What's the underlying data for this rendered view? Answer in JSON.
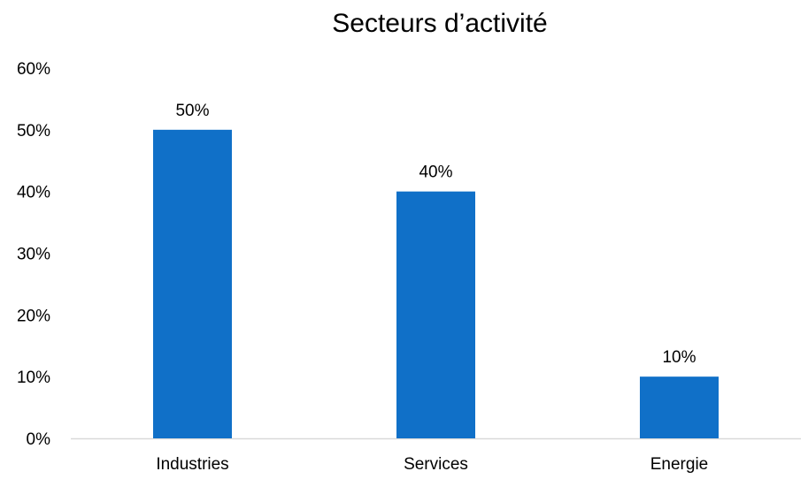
{
  "chart_data": {
    "type": "bar",
    "title": "Secteurs d’activité",
    "categories": [
      "Industries",
      "Services",
      "Energie"
    ],
    "values": [
      50,
      40,
      10
    ],
    "data_labels": [
      "50%",
      "40%",
      "10%"
    ],
    "yticks": [
      "0%",
      "10%",
      "20%",
      "30%",
      "40%",
      "50%",
      "60%"
    ],
    "ylim": [
      0,
      60
    ],
    "xlabel": "",
    "ylabel": "",
    "grid": false,
    "legend": "none",
    "bar_color": "#1070C8",
    "axis_color": "#D9D9D9"
  }
}
